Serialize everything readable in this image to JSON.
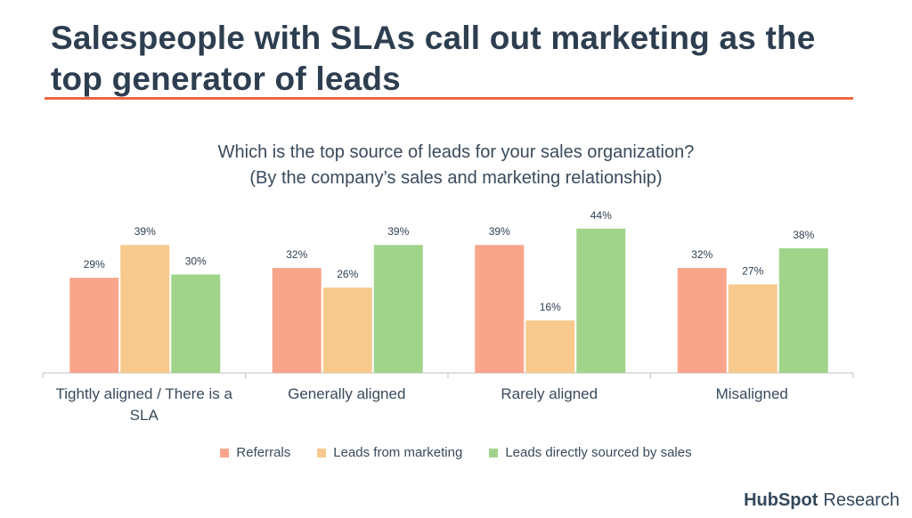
{
  "headline": "Salespeople with SLAs call out marketing as the top generator of leads",
  "chart_data": {
    "type": "bar",
    "title_line1": "Which is the top source of leads for your sales organization?",
    "title_line2": "(By the company’s sales and marketing relationship)",
    "categories": [
      [
        "Tightly aligned / There is a",
        "SLA"
      ],
      [
        "Generally aligned"
      ],
      [
        "Rarely aligned"
      ],
      [
        "Misaligned"
      ]
    ],
    "series": [
      {
        "name": "Referrals",
        "color": "#f9a58c",
        "values": [
          29,
          32,
          39,
          32
        ]
      },
      {
        "name": "Leads from marketing",
        "color": "#f7c98d",
        "values": [
          39,
          26,
          16,
          27
        ]
      },
      {
        "name": "Leads directly sourced by sales",
        "color": "#a1d48b",
        "values": [
          30,
          39,
          44,
          38
        ]
      }
    ],
    "value_suffix": "%",
    "ylim": [
      0,
      50
    ],
    "legend_position": "bottom"
  },
  "brand": {
    "name": "HubSpot",
    "suffix": "Research"
  }
}
